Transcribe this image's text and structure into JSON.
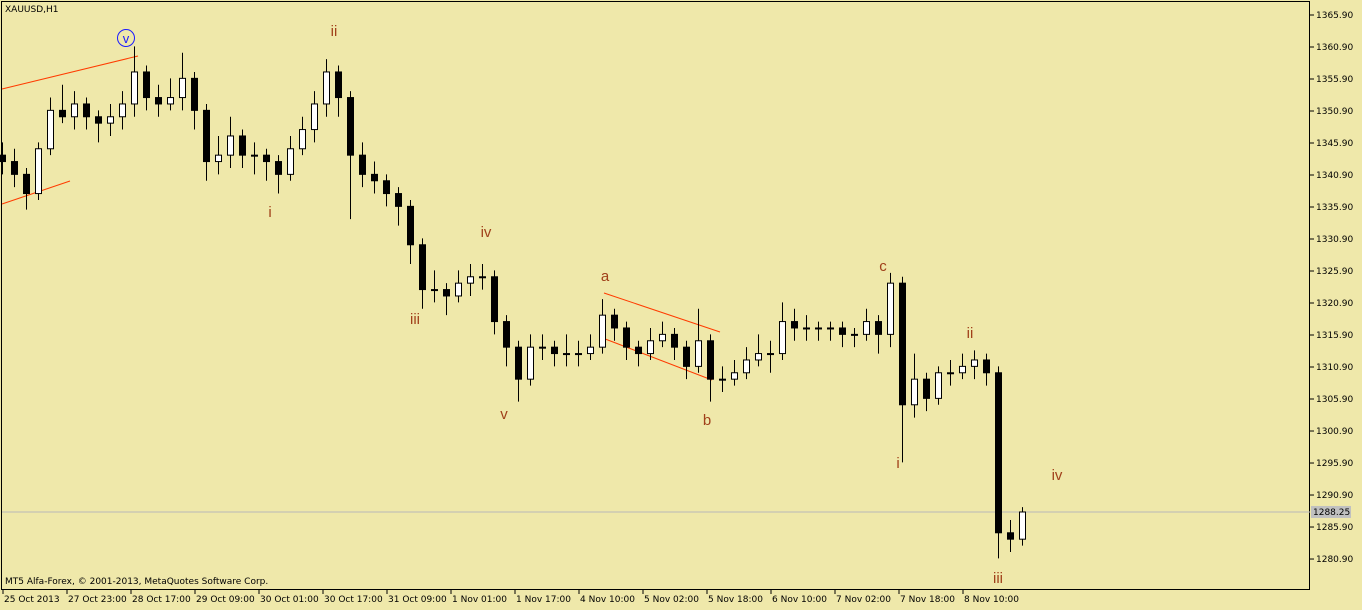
{
  "chart_data": {
    "type": "candlestick",
    "title": "XAUUSD,H1",
    "footer": "MT5 Alfa-Forex, © 2001-2013, MetaQuotes Software Corp.",
    "ylim": [
      1276.06,
      1367.93
    ],
    "yticks": [
      {
        "value": 1365.9,
        "label": "1365.90"
      },
      {
        "value": 1360.9,
        "label": "1360.90"
      },
      {
        "value": 1355.9,
        "label": "1355.90"
      },
      {
        "value": 1350.9,
        "label": "1350.90"
      },
      {
        "value": 1345.9,
        "label": "1345.90"
      },
      {
        "value": 1340.9,
        "label": "1340.90"
      },
      {
        "value": 1335.9,
        "label": "1335.90"
      },
      {
        "value": 1330.9,
        "label": "1330.90"
      },
      {
        "value": 1325.9,
        "label": "1325.90"
      },
      {
        "value": 1320.9,
        "label": "1320.90"
      },
      {
        "value": 1315.9,
        "label": "1315.90"
      },
      {
        "value": 1310.9,
        "label": "1310.90"
      },
      {
        "value": 1305.9,
        "label": "1305.90"
      },
      {
        "value": 1300.9,
        "label": "1300.90"
      },
      {
        "value": 1295.9,
        "label": "1295.90"
      },
      {
        "value": 1290.9,
        "label": "1290.90"
      },
      {
        "value": 1285.9,
        "label": "1285.90"
      },
      {
        "value": 1280.9,
        "label": "1280.90"
      }
    ],
    "current_price": {
      "value": 1288.25,
      "label": "1288.25"
    },
    "x_labels": [
      "25 Oct 2013",
      "27 Oct 23:00",
      "28 Oct 17:00",
      "29 Oct 09:00",
      "30 Oct 01:00",
      "30 Oct 17:00",
      "31 Oct 09:00",
      "1 Nov 01:00",
      "1 Nov 17:00",
      "4 Nov 10:00",
      "5 Nov 02:00",
      "5 Nov 18:00",
      "6 Nov 10:00",
      "7 Nov 02:00",
      "7 Nov 18:00",
      "8 Nov 10:00"
    ],
    "wave_labels": [
      "v",
      "ii",
      "i",
      "iv",
      "iii",
      "v",
      "a",
      "b",
      "c",
      "i",
      "ii",
      "iii",
      "iv"
    ],
    "candles": [
      [
        1344,
        1346,
        1341,
        1343
      ],
      [
        1343,
        1345,
        1339,
        1341
      ],
      [
        1341,
        1342,
        1335.5,
        1338
      ],
      [
        1338,
        1346,
        1337,
        1345
      ],
      [
        1345,
        1353,
        1344,
        1351
      ],
      [
        1351,
        1355,
        1349,
        1350
      ],
      [
        1350,
        1354,
        1348,
        1352
      ],
      [
        1352,
        1353,
        1348,
        1350
      ],
      [
        1350,
        1351,
        1346,
        1349
      ],
      [
        1349,
        1352,
        1347,
        1350
      ],
      [
        1350,
        1354,
        1348,
        1352
      ],
      [
        1352,
        1361,
        1350,
        1357
      ],
      [
        1357,
        1358,
        1351,
        1353
      ],
      [
        1353,
        1355,
        1350,
        1352
      ],
      [
        1352,
        1356,
        1351,
        1353
      ],
      [
        1353,
        1360,
        1351,
        1356
      ],
      [
        1356,
        1357,
        1348,
        1351
      ],
      [
        1351,
        1352,
        1340,
        1343
      ],
      [
        1343,
        1347,
        1341,
        1344
      ],
      [
        1344,
        1350,
        1342,
        1347
      ],
      [
        1347,
        1348,
        1342,
        1344
      ],
      [
        1344,
        1346,
        1341,
        1344
      ],
      [
        1344,
        1345,
        1340,
        1343
      ],
      [
        1343,
        1344,
        1338,
        1341
      ],
      [
        1341,
        1347,
        1340,
        1345
      ],
      [
        1345,
        1350,
        1344,
        1348
      ],
      [
        1348,
        1354,
        1346,
        1352
      ],
      [
        1352,
        1359,
        1350,
        1357
      ],
      [
        1357,
        1358,
        1350,
        1353
      ],
      [
        1353,
        1354,
        1334,
        1344
      ],
      [
        1344,
        1346,
        1339,
        1341
      ],
      [
        1341,
        1343,
        1338,
        1340
      ],
      [
        1340,
        1341,
        1336,
        1338
      ],
      [
        1338,
        1339,
        1333,
        1336
      ],
      [
        1336,
        1337,
        1327,
        1330
      ],
      [
        1330,
        1331,
        1320,
        1323
      ],
      [
        1323,
        1326,
        1321,
        1323
      ],
      [
        1323,
        1324,
        1319,
        1322
      ],
      [
        1322,
        1326,
        1321,
        1324
      ],
      [
        1324,
        1327,
        1322,
        1325
      ],
      [
        1325,
        1327,
        1323,
        1325
      ],
      [
        1325,
        1326,
        1316,
        1318
      ],
      [
        1318,
        1319,
        1311,
        1314
      ],
      [
        1314,
        1315,
        1305.5,
        1309
      ],
      [
        1309,
        1316,
        1308,
        1314
      ],
      [
        1314,
        1316,
        1312,
        1314
      ],
      [
        1314,
        1315,
        1311,
        1313
      ],
      [
        1313,
        1316,
        1311,
        1313
      ],
      [
        1313,
        1315,
        1311,
        1313
      ],
      [
        1313,
        1316,
        1312,
        1314
      ],
      [
        1314,
        1321.5,
        1313,
        1319
      ],
      [
        1319,
        1320,
        1315,
        1317
      ],
      [
        1317,
        1318,
        1312,
        1314
      ],
      [
        1314,
        1315,
        1311,
        1313
      ],
      [
        1313,
        1317,
        1312,
        1315
      ],
      [
        1315,
        1318,
        1314,
        1316
      ],
      [
        1316,
        1317,
        1312,
        1314
      ],
      [
        1314,
        1315,
        1309,
        1311
      ],
      [
        1311,
        1320,
        1310,
        1315
      ],
      [
        1315,
        1316,
        1305.5,
        1309
      ],
      [
        1309,
        1311,
        1307,
        1309
      ],
      [
        1309,
        1312,
        1308,
        1310
      ],
      [
        1310,
        1314,
        1309,
        1312
      ],
      [
        1312,
        1316,
        1311,
        1313
      ],
      [
        1313,
        1315,
        1310,
        1313
      ],
      [
        1313,
        1321,
        1312,
        1318
      ],
      [
        1318,
        1320,
        1315,
        1317
      ],
      [
        1317,
        1319,
        1315,
        1317
      ],
      [
        1317,
        1318,
        1315,
        1317
      ],
      [
        1317,
        1318,
        1315,
        1317
      ],
      [
        1317,
        1318,
        1314,
        1316
      ],
      [
        1316,
        1317,
        1314,
        1316
      ],
      [
        1316,
        1320,
        1315,
        1318
      ],
      [
        1318,
        1319,
        1313,
        1316
      ],
      [
        1316,
        1325.6,
        1314,
        1324
      ],
      [
        1324,
        1325,
        1296,
        1305
      ],
      [
        1305,
        1313,
        1303,
        1309
      ],
      [
        1309,
        1310,
        1304,
        1306
      ],
      [
        1306,
        1311,
        1305,
        1310
      ],
      [
        1310,
        1312,
        1308,
        1310
      ],
      [
        1310,
        1313,
        1309,
        1311
      ],
      [
        1311,
        1313.5,
        1309,
        1312
      ],
      [
        1312,
        1313,
        1308,
        1310
      ],
      [
        1310,
        1311,
        1281,
        1285
      ],
      [
        1285,
        1287,
        1282,
        1284
      ],
      [
        1284,
        1289,
        1283,
        1288.25
      ]
    ]
  }
}
